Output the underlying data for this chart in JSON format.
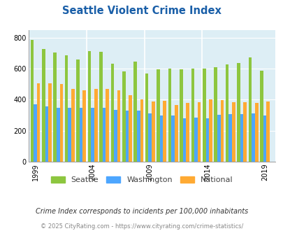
{
  "title": "Seattle Violent Crime Index",
  "seattle_vals": [
    787,
    727,
    703,
    688,
    662,
    713,
    710,
    632,
    582,
    648,
    570,
    595,
    600,
    595,
    602,
    601,
    610,
    630,
    637,
    673,
    587
  ],
  "washington_vals": [
    372,
    356,
    347,
    348,
    348,
    348,
    347,
    335,
    332,
    332,
    311,
    297,
    296,
    280,
    283,
    282,
    304,
    306,
    309,
    310,
    297
  ],
  "national_vals": [
    507,
    507,
    500,
    472,
    463,
    468,
    470,
    462,
    430,
    403,
    390,
    394,
    368,
    379,
    385,
    401,
    399,
    386,
    383,
    380,
    387
  ],
  "plot_years": [
    1999,
    2000,
    2001,
    2002,
    2003,
    2004,
    2005,
    2006,
    2007,
    2008,
    2009,
    2010,
    2011,
    2012,
    2013,
    2014,
    2015,
    2016,
    2017,
    2018,
    2019
  ],
  "seattle_color": "#8dc63f",
  "washington_color": "#4da6ff",
  "national_color": "#ffaa33",
  "plot_bg": "#ddeef5",
  "title_color": "#1a5fa8",
  "subtitle": "Crime Index corresponds to incidents per 100,000 inhabitants",
  "footer": "© 2025 CityRating.com - https://www.cityrating.com/crime-statistics/",
  "yticks": [
    0,
    200,
    400,
    600,
    800
  ],
  "xtick_years": [
    1999,
    2004,
    2009,
    2014,
    2019
  ],
  "bar_width": 0.28,
  "ylim": [
    0,
    850
  ],
  "xlim_left": 1998.4,
  "xlim_right": 2019.9
}
